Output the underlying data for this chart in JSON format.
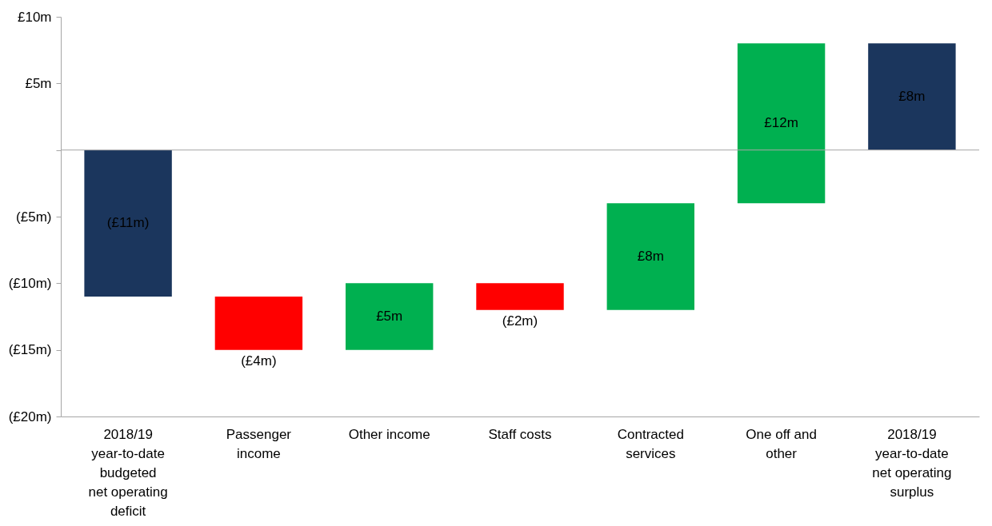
{
  "chart_data": {
    "type": "bar",
    "categories": [
      "2018/19\nyear-to-date\nbudgeted\nnet operating\ndeficit",
      "Passenger\nincome",
      "Other income",
      "Staff costs",
      "Contracted\nservices",
      "One off and\nother",
      "2018/19\nyear-to-date\nnet operating\nsurplus"
    ],
    "values": [
      -11,
      -4,
      5,
      -2,
      8,
      12,
      8
    ],
    "base": [
      0,
      -11,
      -15,
      -10,
      -12,
      -4,
      0
    ],
    "colors": [
      "#1b365d",
      "#ff0000",
      "#00b050",
      "#ff0000",
      "#00b050",
      "#00b050",
      "#1b365d"
    ],
    "value_labels": [
      "(£11m)",
      "(£4m)",
      "£5m",
      "(£2m)",
      "£8m",
      "£12m",
      "£8m"
    ],
    "ylim": [
      -20,
      10
    ],
    "yticks": [
      {
        "value": -20,
        "label": "(£20m)"
      },
      {
        "value": -15,
        "label": "(£15m)"
      },
      {
        "value": -10,
        "label": "(£10m)"
      },
      {
        "value": -5,
        "label": "(£5m)"
      },
      {
        "value": 0,
        "label": null
      },
      {
        "value": 5,
        "label": "£5m"
      },
      {
        "value": 10,
        "label": "£10m"
      }
    ],
    "ref_lines": [
      {
        "axis": "y",
        "value": 0,
        "color": "#a6a6a6"
      }
    ],
    "grid": false
  }
}
